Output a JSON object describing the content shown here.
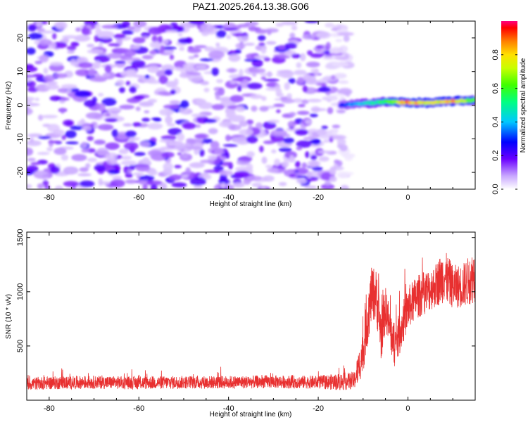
{
  "title": "PAZ1.2025.264.13.38.G06",
  "colors": {
    "snr_line": "#e83030",
    "axis": "#000000"
  },
  "chart_data": [
    {
      "type": "heatmap",
      "panel": "top",
      "xlabel": "Height of straight line (km)",
      "ylabel": "Frequency (Hz)",
      "xlim": [
        -85,
        15
      ],
      "ylim": [
        -25,
        25
      ],
      "xticks": [
        -80,
        -60,
        -40,
        -20,
        0
      ],
      "xtick_labels": [
        "-80",
        "-60",
        "-40",
        "-20",
        "0"
      ],
      "yticks": [
        -20,
        -10,
        0,
        10,
        20
      ],
      "ytick_labels": [
        "-20",
        "-10",
        "0",
        "10",
        "20"
      ],
      "colorbar": {
        "label": "Normalized spectral amplitude",
        "range": [
          0,
          1
        ],
        "ticks": [
          0.0,
          0.2,
          0.4,
          0.6,
          0.8
        ],
        "tick_labels": [
          "0.0",
          "0.2",
          "0.4",
          "0.6",
          "0.8"
        ]
      },
      "description_noise": {
        "x_range": [
          -85,
          -13
        ],
        "amplitude_range": [
          0.05,
          0.25
        ]
      },
      "signal_ridge": {
        "x": [
          -15,
          -10,
          -5,
          0,
          5,
          10,
          15
        ],
        "frequency": [
          0,
          0.5,
          1.0,
          0.8,
          0.7,
          1.2,
          1.5
        ],
        "amplitude": [
          0.3,
          0.45,
          0.6,
          0.9,
          0.75,
          0.85,
          0.6
        ]
      }
    },
    {
      "type": "line",
      "panel": "bottom",
      "xlabel": "Height of straight line (km)",
      "ylabel": "SNR (10 * v/v)",
      "xlim": [
        -85,
        15
      ],
      "ylim": [
        0,
        1550
      ],
      "xticks": [
        -80,
        -60,
        -40,
        -20,
        0
      ],
      "xtick_labels": [
        "-80",
        "-60",
        "-40",
        "-20",
        "0"
      ],
      "yticks": [
        500,
        1000,
        1500
      ],
      "ytick_labels": [
        "500",
        "1000",
        "1500"
      ],
      "series": [
        {
          "name": "SNR",
          "x": [
            -85,
            -80,
            -70,
            -60,
            -50,
            -40,
            -30,
            -20,
            -15,
            -12,
            -11,
            -10,
            -9,
            -8,
            -7,
            -6,
            -5,
            -4,
            -3,
            -2,
            0,
            2,
            4,
            6,
            8,
            10,
            12,
            15
          ],
          "mean": [
            150,
            160,
            165,
            160,
            165,
            165,
            170,
            165,
            170,
            180,
            300,
            450,
            750,
            1000,
            950,
            600,
            850,
            650,
            500,
            600,
            850,
            950,
            1000,
            1050,
            1150,
            1050,
            1050,
            1150
          ],
          "spread": [
            60,
            60,
            60,
            60,
            60,
            60,
            60,
            60,
            80,
            80,
            150,
            200,
            250,
            250,
            250,
            250,
            200,
            200,
            200,
            200,
            200,
            200,
            200,
            200,
            250,
            200,
            200,
            250
          ]
        }
      ]
    }
  ]
}
